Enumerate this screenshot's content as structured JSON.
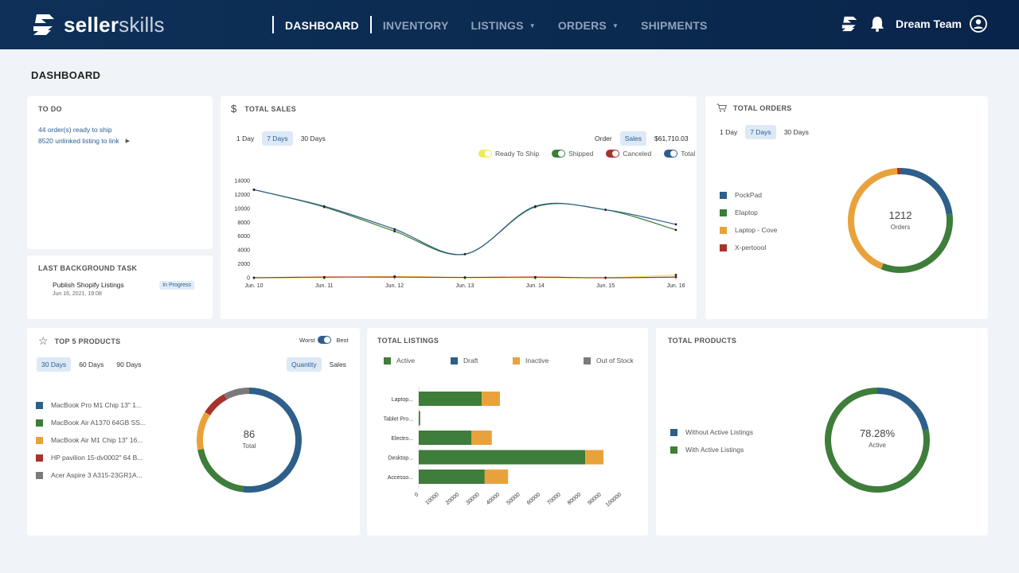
{
  "header": {
    "logo_bold": "seller",
    "logo_light": "skills",
    "nav": [
      {
        "label": "DASHBOARD",
        "caret": false,
        "active": true
      },
      {
        "label": "INVENTORY",
        "caret": false,
        "active": false
      },
      {
        "label": "LISTINGS",
        "caret": true,
        "active": false
      },
      {
        "label": "ORDERS",
        "caret": true,
        "active": false
      },
      {
        "label": "SHIPMENTS",
        "caret": false,
        "active": false
      }
    ],
    "user": "Dream Team",
    "icons": [
      "logo-mark-icon",
      "bell-icon",
      "user-circle-icon"
    ]
  },
  "page_title": "DASHBOARD",
  "todo": {
    "title": "TO DO",
    "line1": "44 order(s) ready to ship",
    "line2": "8520 unlinked listing to link"
  },
  "bg_task": {
    "title": "LAST BACKGROUND TASK",
    "name": "Publish Shopify Listings",
    "date": "Jun 16, 2021, 19:08",
    "status": "In Progress"
  },
  "total_sales": {
    "title": "TOTAL SALES",
    "ranges": [
      "1 Day",
      "7 Days",
      "30 Days"
    ],
    "active_range": "7 Days",
    "mode_order": "Order",
    "mode_sales": "Sales",
    "amount": "$61,710.03",
    "legend": [
      {
        "name": "Ready To Ship",
        "color": "#f2ea5a"
      },
      {
        "name": "Shipped",
        "color": "#3e7d3a"
      },
      {
        "name": "Canceled",
        "color": "#a8322d"
      },
      {
        "name": "Total",
        "color": "#2d5f8a"
      }
    ]
  },
  "total_orders": {
    "title": "TOTAL ORDERS",
    "ranges": [
      "1 Day",
      "7 Days",
      "30 Days"
    ],
    "active_range": "7 Days",
    "center_value": "1212",
    "center_label": "Orders",
    "legend": [
      {
        "name": "PockPad",
        "color": "#2d5f8a"
      },
      {
        "name": "Elaptop",
        "color": "#3e7d3a"
      },
      {
        "name": "Laptop - Cove",
        "color": "#e9a23b"
      },
      {
        "name": "X-pertoool",
        "color": "#a8322d"
      }
    ]
  },
  "top_products": {
    "title": "TOP 5 PRODUCTS",
    "toggle_left": "Worst",
    "toggle_right": "Best",
    "ranges": [
      "30 Days",
      "60 Days",
      "90 Days"
    ],
    "active_range": "30 Days",
    "mode_quantity": "Quantity",
    "mode_sales": "Sales",
    "center_value": "86",
    "center_label": "Total",
    "legend": [
      {
        "name": "MacBook Pro M1 Chip 13\" 1...",
        "color": "#2d5f8a"
      },
      {
        "name": "MacBook Air A1370 64GB SS...",
        "color": "#3e7d3a"
      },
      {
        "name": "MacBook Air M1 Chip 13\" 16...",
        "color": "#e9a23b"
      },
      {
        "name": "HP pavilion 15-dv0002\" 64 B...",
        "color": "#a8322d"
      },
      {
        "name": "Acer Aspire  3 A315-23GR1A...",
        "color": "#7a7a7a"
      }
    ]
  },
  "total_listings": {
    "title": "TOTAL LISTINGS",
    "legend": [
      {
        "name": "Active",
        "color": "#3e7d3a"
      },
      {
        "name": "Draft",
        "color": "#2d5f8a"
      },
      {
        "name": "Inactive",
        "color": "#e9a23b"
      },
      {
        "name": "Out of Stock",
        "color": "#7a7a7a"
      }
    ]
  },
  "total_products": {
    "title": "TOTAL PRODUCTS",
    "center_value": "78.28%",
    "center_label": "Active",
    "legend": [
      {
        "name": "Without Active Listings",
        "color": "#2d5f8a"
      },
      {
        "name": "With Active Listings",
        "color": "#3e7d3a"
      }
    ]
  },
  "chart_data": [
    {
      "type": "line",
      "title": "TOTAL SALES",
      "x": [
        "Jun. 10",
        "Jun. 11",
        "Jun. 12",
        "Jun. 13",
        "Jun. 14",
        "Jun. 15",
        "Jun. 16"
      ],
      "ylim": [
        0,
        14000
      ],
      "yticks": [
        0,
        2000,
        4000,
        6000,
        8000,
        10000,
        12000,
        14000
      ],
      "grid": false,
      "series": [
        {
          "name": "Total",
          "color": "#2d5f8a",
          "values": [
            12700,
            10300,
            7000,
            3400,
            10300,
            9800,
            7700
          ]
        },
        {
          "name": "Shipped",
          "color": "#3e7d3a",
          "values": [
            12700,
            10200,
            6700,
            3400,
            10200,
            9800,
            6900
          ]
        },
        {
          "name": "Ready To Ship",
          "color": "#f2ea5a",
          "values": [
            0,
            0,
            200,
            0,
            0,
            0,
            400
          ]
        },
        {
          "name": "Canceled",
          "color": "#a8322d",
          "values": [
            0,
            100,
            100,
            50,
            100,
            0,
            100
          ]
        }
      ]
    },
    {
      "type": "pie",
      "title": "TOTAL ORDERS",
      "series": [
        {
          "name": "PockPad",
          "value": 23
        },
        {
          "name": "Elaptop",
          "value": 33
        },
        {
          "name": "Laptop - Cove",
          "value": 43
        },
        {
          "name": "X-pertoool",
          "value": 1
        }
      ]
    },
    {
      "type": "pie",
      "title": "TOP 5 PRODUCTS",
      "series": [
        {
          "name": "MacBook Pro M1 Chip 13\" 1...",
          "value": 52
        },
        {
          "name": "MacBook Air A1370 64GB SS...",
          "value": 20
        },
        {
          "name": "MacBook Air M1 Chip 13\" 16...",
          "value": 12
        },
        {
          "name": "HP pavilion 15-dv0002\" 64 B...",
          "value": 8
        },
        {
          "name": "Acer Aspire  3 A315-23GR1A...",
          "value": 8
        }
      ]
    },
    {
      "type": "bar",
      "title": "TOTAL LISTINGS",
      "orientation": "horizontal",
      "stacked": true,
      "categories": [
        "Laptop...",
        "Tablet Pro...",
        "Electro...",
        "Desktop...",
        "Accesso..."
      ],
      "xlim": [
        0,
        100000
      ],
      "xticks": [
        0,
        10000,
        20000,
        30000,
        40000,
        50000,
        60000,
        70000,
        80000,
        90000,
        100000
      ],
      "series": [
        {
          "name": "Active",
          "values": [
            31000,
            700,
            26000,
            82000,
            32500
          ]
        },
        {
          "name": "Draft",
          "values": [
            0,
            0,
            0,
            0,
            0
          ]
        },
        {
          "name": "Inactive",
          "values": [
            9000,
            0,
            10000,
            9000,
            11500
          ]
        },
        {
          "name": "Out of Stock",
          "values": [
            0,
            0,
            0,
            0,
            0
          ]
        }
      ]
    },
    {
      "type": "pie",
      "title": "TOTAL PRODUCTS",
      "series": [
        {
          "name": "Without Active Listings",
          "value": 21.72
        },
        {
          "name": "With Active Listings",
          "value": 78.28
        }
      ]
    }
  ]
}
